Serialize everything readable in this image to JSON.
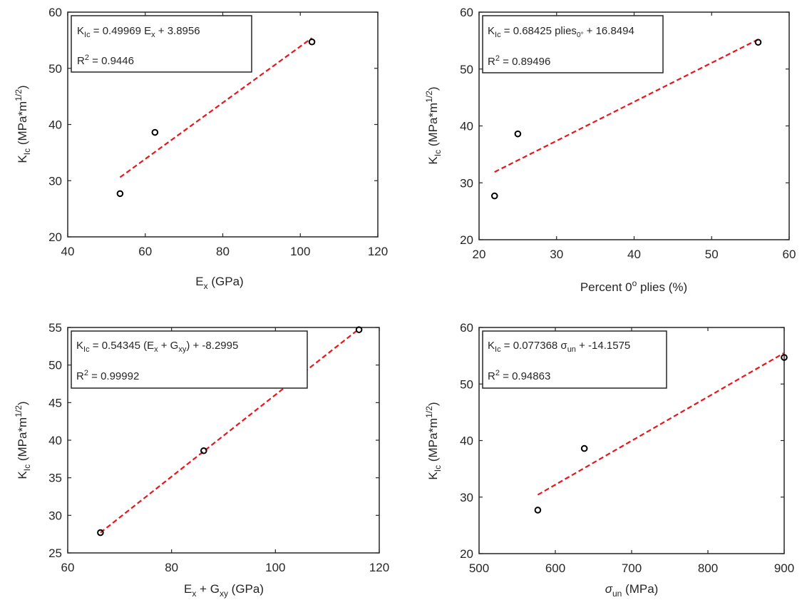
{
  "chart_data": [
    {
      "type": "scatter",
      "xlabel": "E_x (GPa)",
      "ylabel": "K_Ic (MPa*m^1/2)",
      "xlim": [
        40,
        120
      ],
      "ylim": [
        20,
        60
      ],
      "xticks": [
        "40",
        "60",
        "80",
        "100",
        "120"
      ],
      "yticks": [
        "20",
        "30",
        "40",
        "50",
        "60"
      ],
      "points": {
        "x": [
          53.5,
          62.5,
          103.0
        ],
        "y": [
          27.7,
          38.6,
          54.7
        ]
      },
      "fit": {
        "x": [
          53.5,
          103.0
        ],
        "y": [
          30.6,
          55.4
        ]
      },
      "annotation": {
        "line1": "0.49969 E",
        "line1_sub": "x",
        "line1_rest": " + 3.8956",
        "r2": "0.9446"
      },
      "marker_color": "#000000",
      "fit_color": "#e8161b"
    },
    {
      "type": "scatter",
      "xlabel": "Percent 0^o plies (%)",
      "ylabel": "K_Ic (MPa*m^1/2)",
      "xlim": [
        20,
        60
      ],
      "ylim": [
        20,
        60
      ],
      "xticks": [
        "20",
        "30",
        "40",
        "50",
        "60"
      ],
      "yticks": [
        "20",
        "30",
        "40",
        "50",
        "60"
      ],
      "points": {
        "x": [
          22.0,
          25.0,
          56.0
        ],
        "y": [
          27.7,
          38.6,
          54.7
        ]
      },
      "fit": {
        "x": [
          22.0,
          56.0
        ],
        "y": [
          31.9,
          55.2
        ]
      },
      "annotation": {
        "line1": "0.68425 plies",
        "line1_sub": "0°",
        "line1_rest": " + 16.8494",
        "r2": "0.89496"
      },
      "marker_color": "#000000",
      "fit_color": "#e8161b"
    },
    {
      "type": "scatter",
      "xlabel": "E_x + G_xy (GPa)",
      "ylabel": "K_Ic (MPa*m^1/2)",
      "xlim": [
        60,
        120
      ],
      "ylim": [
        25,
        55
      ],
      "xticks": [
        "60",
        "80",
        "100",
        "120"
      ],
      "yticks": [
        "25",
        "30",
        "35",
        "40",
        "45",
        "50",
        "55"
      ],
      "points": {
        "x": [
          66.3,
          86.2,
          116.1
        ],
        "y": [
          27.7,
          38.6,
          54.7
        ]
      },
      "fit": {
        "x": [
          66.3,
          116.1
        ],
        "y": [
          27.7,
          54.8
        ]
      },
      "annotation": {
        "line1": "0.54345 (E",
        "line1_sub": "x",
        "line1_mid": " + G",
        "line1_sub2": "xy",
        "line1_rest": ") + -8.2995",
        "r2": "0.99992"
      },
      "marker_color": "#000000",
      "fit_color": "#e8161b"
    },
    {
      "type": "scatter",
      "xlabel": "σ_un (MPa)",
      "ylabel": "K_Ic (MPa*m^1/2)",
      "xlim": [
        500,
        900
      ],
      "ylim": [
        20,
        60
      ],
      "xticks": [
        "500",
        "600",
        "700",
        "800",
        "900"
      ],
      "yticks": [
        "20",
        "30",
        "40",
        "50",
        "60"
      ],
      "points": {
        "x": [
          577,
          638,
          900
        ],
        "y": [
          27.7,
          38.6,
          54.7
        ]
      },
      "fit": {
        "x": [
          577,
          900
        ],
        "y": [
          30.4,
          55.5
        ]
      },
      "annotation": {
        "line1": "0.077368 σ",
        "line1_sub": "un",
        "line1_rest": " + -14.1575",
        "r2": "0.94863"
      },
      "marker_color": "#000000",
      "fit_color": "#e8161b"
    }
  ],
  "labels": {
    "k": "K",
    "k_sub": "Ic",
    "y_unit_open": "(MPa*m",
    "y_unit_exp": "1/2",
    "y_unit_close": ")",
    "eq_sign": " = ",
    "r2_prefix": "R",
    "r2_exp": "2",
    "r2_eq": " = ",
    "x1_a": "E",
    "x1_sub": "x",
    "x1_b": " (GPa)",
    "x2_a": "Percent 0",
    "x2_sup": "o",
    "x2_b": " plies (%)",
    "x3_a": "E",
    "x3_sub": "x",
    "x3_b": " + G",
    "x3_sub2": "xy",
    "x3_c": " (GPa)",
    "x4_a": "σ",
    "x4_sub": "un",
    "x4_b": " (MPa)"
  }
}
